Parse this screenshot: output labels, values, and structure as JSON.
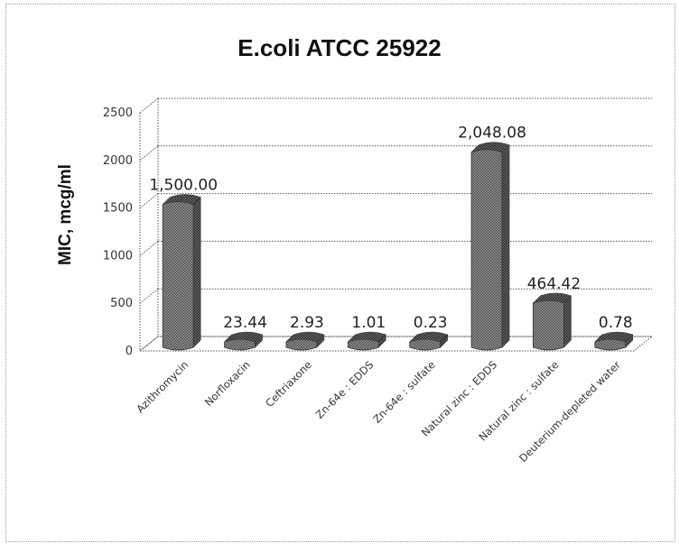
{
  "chart_data": {
    "type": "bar",
    "title": "E.coli ATCC 25922",
    "ylabel": "MIC, mcg/ml",
    "xlabel": "",
    "ylim": [
      0,
      2500
    ],
    "yticks": [
      "0",
      "500",
      "1000",
      "1500",
      "2000",
      "2500"
    ],
    "grid": true,
    "three_d": true,
    "categories": [
      "Azithromycin",
      "Norfloxacin",
      "Ceftriaxone",
      "Zn-64e : EDDS",
      "Zn-64e : sulfate",
      "Natural zinc : EDDS",
      "Natural zinc : sulfate",
      "Deuterium-depleted water"
    ],
    "values": [
      1500.0,
      23.44,
      2.93,
      1.01,
      0.23,
      2048.08,
      464.42,
      0.78
    ],
    "data_labels": [
      "1,500.00",
      "23.44",
      "2.93",
      "1.01",
      "0.23",
      "2,048.08",
      "464.42",
      "0.78"
    ],
    "colors": {
      "bar_fill": "#8a8a8a",
      "bar_dark": "#5a5a5a",
      "grid": "#555555"
    }
  }
}
